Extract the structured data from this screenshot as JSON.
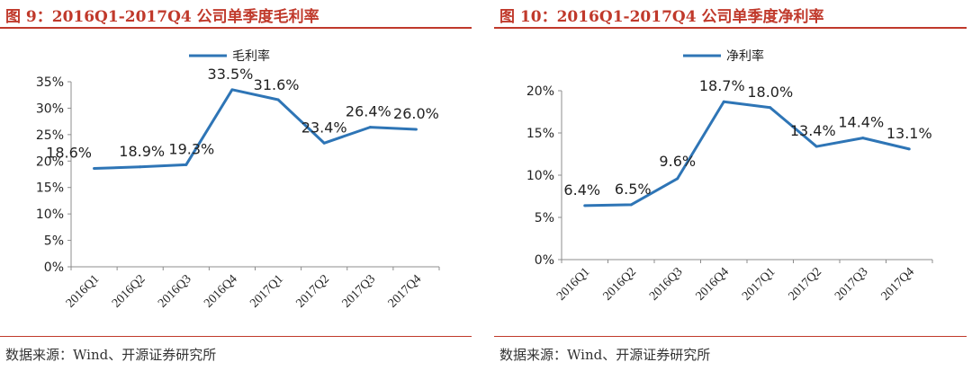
{
  "panels": [
    {
      "title": "图 9：2016Q1-2017Q4 公司单季度毛利率",
      "source": "数据来源：Wind、开源证券研究所"
    },
    {
      "title": "图 10：2016Q1-2017Q4 公司单季度净利率",
      "source": "数据来源：Wind、开源证券研究所"
    }
  ],
  "chart_data": [
    {
      "type": "line",
      "title": "图 9：2016Q1-2017Q4 公司单季度毛利率",
      "categories": [
        "2016Q1",
        "2016Q2",
        "2016Q3",
        "2016Q4",
        "2017Q1",
        "2017Q2",
        "2017Q3",
        "2017Q4"
      ],
      "series": [
        {
          "name": "毛利率",
          "values": [
            18.6,
            18.9,
            19.3,
            33.5,
            31.6,
            23.4,
            26.4,
            26.0
          ],
          "labels": [
            "18.6%",
            "18.9%",
            "19.3%",
            "33.5%",
            "31.6%",
            "23.4%",
            "26.4%",
            "26.0%"
          ]
        }
      ],
      "ylim": [
        0,
        35
      ],
      "yticks": [
        0,
        5,
        10,
        15,
        20,
        25,
        30,
        35
      ],
      "ytick_labels": [
        "0%",
        "5%",
        "10%",
        "15%",
        "20%",
        "25%",
        "30%",
        "35%"
      ],
      "grid": false,
      "legend": "top-center",
      "line_color": "#2e75b6"
    },
    {
      "type": "line",
      "title": "图 10：2016Q1-2017Q4 公司单季度净利率",
      "categories": [
        "2016Q1",
        "2016Q2",
        "2016Q3",
        "2016Q4",
        "2017Q1",
        "2017Q2",
        "2017Q3",
        "2017Q4"
      ],
      "series": [
        {
          "name": "净利率",
          "values": [
            6.4,
            6.5,
            9.6,
            18.7,
            18.0,
            13.4,
            14.4,
            13.1
          ],
          "labels": [
            "6.4%",
            "6.5%",
            "9.6%",
            "18.7%",
            "18.0%",
            "13.4%",
            "14.4%",
            "13.1%"
          ]
        }
      ],
      "ylim": [
        0,
        20
      ],
      "yticks": [
        0,
        5,
        10,
        15,
        20
      ],
      "ytick_labels": [
        "0%",
        "5%",
        "10%",
        "15%",
        "20%"
      ],
      "grid": false,
      "legend": "top-center",
      "line_color": "#2e75b6"
    }
  ]
}
